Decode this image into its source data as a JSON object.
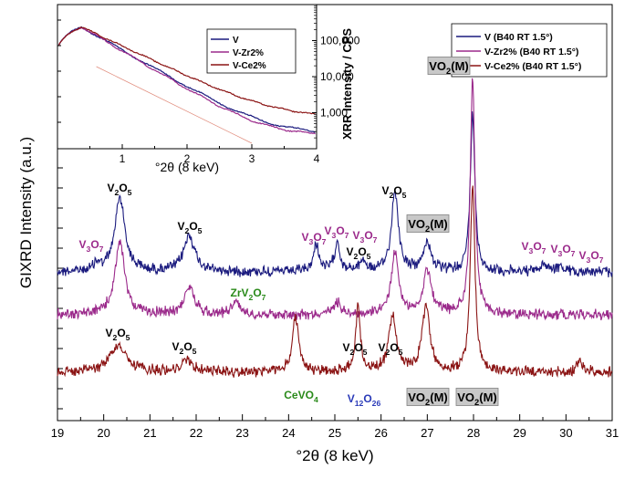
{
  "chart_data": [
    {
      "type": "line",
      "xlabel": "°2θ (8 keV)",
      "ylabel": "GIXRD Intensity (a.u.)",
      "xlim": [
        19,
        31
      ],
      "x_ticks": [
        "19",
        "20",
        "21",
        "22",
        "23",
        "24",
        "25",
        "26",
        "27",
        "28",
        "29",
        "30",
        "31"
      ],
      "legend": {
        "placement": "top-right",
        "entries": [
          "V (B40 RT 1.5°)",
          "V-Zr2% (B40 RT 1.5°)",
          "V-Ce2% (B40 RT 1.5°)"
        ]
      },
      "series": [
        {
          "name": "V (B40 RT 1.5°)",
          "color": "#1a1a7e",
          "baseline": 298,
          "peaks": [
            {
              "x": 19.85,
              "h": 8,
              "w": 0.08
            },
            {
              "x": 20.35,
              "h": 82,
              "w": 0.13
            },
            {
              "x": 21.85,
              "h": 40,
              "w": 0.14
            },
            {
              "x": 24.6,
              "h": 30,
              "w": 0.07
            },
            {
              "x": 25.05,
              "h": 32,
              "w": 0.07
            },
            {
              "x": 25.6,
              "h": 12,
              "w": 0.08
            },
            {
              "x": 26.3,
              "h": 88,
              "w": 0.09
            },
            {
              "x": 27.0,
              "h": 32,
              "w": 0.1
            },
            {
              "x": 27.98,
              "h": 172,
              "w": 0.06
            },
            {
              "x": 29.55,
              "h": 8,
              "w": 0.1
            },
            {
              "x": 29.85,
              "h": 5,
              "w": 0.1
            }
          ]
        },
        {
          "name": "V-Zr2% (B40 RT 1.5°)",
          "color": "#9b2a8b",
          "baseline": 345,
          "peaks": [
            {
              "x": 20.35,
              "h": 78,
              "w": 0.13
            },
            {
              "x": 21.85,
              "h": 30,
              "w": 0.13
            },
            {
              "x": 22.85,
              "h": 14,
              "w": 0.11
            },
            {
              "x": 25.05,
              "h": 14,
              "w": 0.1
            },
            {
              "x": 26.3,
              "h": 70,
              "w": 0.09
            },
            {
              "x": 27.0,
              "h": 48,
              "w": 0.11
            },
            {
              "x": 27.98,
              "h": 258,
              "w": 0.06
            }
          ]
        },
        {
          "name": "V-Ce2% (B40 RT 1.5°)",
          "color": "#8b1414",
          "baseline": 408,
          "peaks": [
            {
              "x": 20.3,
              "h": 28,
              "w": 0.22
            },
            {
              "x": 21.8,
              "h": 12,
              "w": 0.16
            },
            {
              "x": 24.15,
              "h": 60,
              "w": 0.08
            },
            {
              "x": 25.5,
              "h": 72,
              "w": 0.06
            },
            {
              "x": 26.25,
              "h": 60,
              "w": 0.1
            },
            {
              "x": 26.97,
              "h": 72,
              "w": 0.1
            },
            {
              "x": 27.98,
              "h": 205,
              "w": 0.06
            },
            {
              "x": 30.3,
              "h": 10,
              "w": 0.08
            }
          ]
        }
      ],
      "annotations": [
        {
          "id": "v2o5-1",
          "html": "V<tspan baseline-shift='sub' font-size='9'>2</tspan>O<tspan baseline-shift='sub' font-size='9'>5</tspan>",
          "text": "V2O5",
          "color": "#000000",
          "boxed": false
        },
        {
          "id": "v2o5-2",
          "text": "V2O5",
          "color": "#000000",
          "boxed": false
        },
        {
          "id": "v3o7-1",
          "text": "V3O7",
          "color": "#9b2a8b",
          "boxed": false
        },
        {
          "id": "v3o7-2",
          "text": "V3O7",
          "color": "#9b2a8b",
          "boxed": false
        },
        {
          "id": "v3o7-3",
          "text": "V3O7",
          "color": "#9b2a8b",
          "boxed": false
        },
        {
          "id": "v3o7-4",
          "text": "V3O7",
          "color": "#9b2a8b",
          "boxed": false
        },
        {
          "id": "v2o5-3",
          "text": "V2O5",
          "color": "#000000",
          "boxed": false
        },
        {
          "id": "v2o5-4",
          "text": "V2O5",
          "color": "#000000",
          "boxed": false
        },
        {
          "id": "vo2m-1",
          "text": "VO2(M)",
          "color": "#000000",
          "boxed": true
        },
        {
          "id": "vo2m-2",
          "text": "VO2(M)",
          "color": "#000000",
          "boxed": true
        },
        {
          "id": "v3o7-5",
          "text": "V3O7",
          "color": "#9b2a8b",
          "boxed": false
        },
        {
          "id": "v3o7-6",
          "text": "V3O7",
          "color": "#9b2a8b",
          "boxed": false
        },
        {
          "id": "v3o7-7",
          "text": "V3O7",
          "color": "#9b2a8b",
          "boxed": false
        },
        {
          "id": "zrv2o7",
          "text": "ZrV2O7",
          "color": "#2a8a1a",
          "boxed": false
        },
        {
          "id": "v2o5-5",
          "text": "V2O5",
          "color": "#000000",
          "boxed": false
        },
        {
          "id": "v2o5-6",
          "text": "V2O5",
          "color": "#000000",
          "boxed": false
        },
        {
          "id": "v2o5-7",
          "text": "V2O5",
          "color": "#000000",
          "boxed": false
        },
        {
          "id": "v2o5-8",
          "text": "V2O5",
          "color": "#000000",
          "boxed": false
        },
        {
          "id": "cevo4",
          "text": "CeVO4",
          "color": "#2a8a1a",
          "boxed": false
        },
        {
          "id": "v12o26",
          "text": "V12O26",
          "color": "#2a3ab8",
          "boxed": false
        },
        {
          "id": "vo2m-3",
          "text": "VO2(M)",
          "color": "#000000",
          "boxed": true
        },
        {
          "id": "vo2m-4",
          "text": "VO2(M)",
          "color": "#000000",
          "boxed": true
        }
      ]
    },
    {
      "type": "line",
      "inset": true,
      "xlabel": "°2θ (8 keV)",
      "ylabel": "XRR Intensity / CPS",
      "xlim": [
        0,
        4
      ],
      "y_scale": "log",
      "x_ticks": [
        "1",
        "2",
        "3",
        "4"
      ],
      "y_ticks": [
        "1,000",
        "10,000",
        "100,000"
      ],
      "legend": {
        "placement": "top-right",
        "entries": [
          "V",
          "V-Zr2%",
          "V-Ce2%"
        ]
      },
      "series": [
        {
          "name": "V",
          "color": "#1a1a7e"
        },
        {
          "name": "V-Zr2%",
          "color": "#9b2a8b"
        },
        {
          "name": "V-Ce2%",
          "color": "#8b1414"
        }
      ]
    }
  ]
}
